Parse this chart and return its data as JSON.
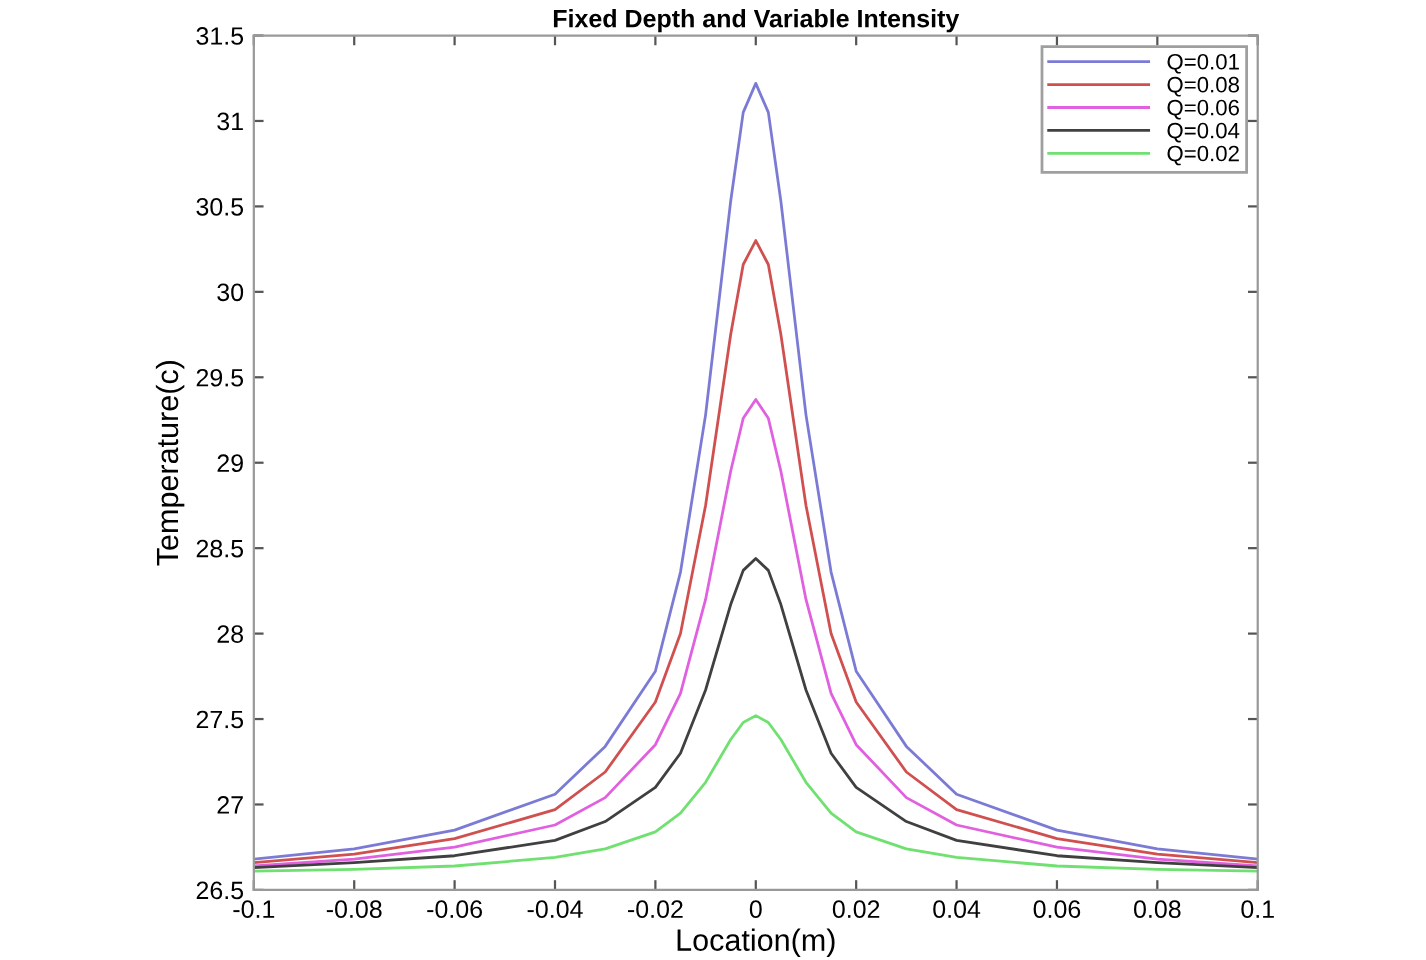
{
  "chart_data": {
    "type": "line",
    "title": "Fixed Depth and Variable Intensity",
    "xlabel": "Location(m)",
    "ylabel": "Temperature(c)",
    "x": [
      -0.1,
      -0.08,
      -0.06,
      -0.04,
      -0.03,
      -0.02,
      -0.015,
      -0.01,
      -0.005,
      -0.0025,
      0,
      0.0025,
      0.005,
      0.01,
      0.015,
      0.02,
      0.03,
      0.04,
      0.06,
      0.08,
      0.1
    ],
    "series": [
      {
        "name": "Q=0.01",
        "color": "#7b7bd6",
        "values": [
          26.68,
          26.74,
          26.85,
          27.06,
          27.34,
          27.78,
          28.36,
          29.28,
          30.53,
          31.05,
          31.22,
          31.05,
          30.53,
          29.28,
          28.36,
          27.78,
          27.34,
          27.06,
          26.85,
          26.74,
          26.68
        ]
      },
      {
        "name": "Q=0.08",
        "color": "#d05050",
        "values": [
          26.66,
          26.71,
          26.8,
          26.97,
          27.19,
          27.6,
          28.0,
          28.75,
          29.75,
          30.16,
          30.3,
          30.16,
          29.75,
          28.75,
          28.0,
          27.6,
          27.19,
          26.97,
          26.8,
          26.71,
          26.66
        ]
      },
      {
        "name": "Q=0.06",
        "color": "#e060e0",
        "values": [
          26.64,
          26.68,
          26.75,
          26.88,
          27.04,
          27.35,
          27.65,
          28.2,
          28.95,
          29.26,
          29.37,
          29.26,
          28.95,
          28.2,
          27.65,
          27.35,
          27.04,
          26.88,
          26.75,
          26.68,
          26.64
        ]
      },
      {
        "name": "Q=0.04",
        "color": "#404040",
        "values": [
          26.63,
          26.66,
          26.7,
          26.79,
          26.9,
          27.1,
          27.3,
          27.67,
          28.17,
          28.37,
          28.44,
          28.37,
          28.17,
          27.67,
          27.3,
          27.1,
          26.9,
          26.79,
          26.7,
          26.66,
          26.63
        ]
      },
      {
        "name": "Q=0.02",
        "color": "#70e070",
        "values": [
          26.61,
          26.62,
          26.64,
          26.69,
          26.74,
          26.84,
          26.95,
          27.13,
          27.38,
          27.48,
          27.52,
          27.48,
          27.38,
          27.13,
          26.95,
          26.84,
          26.74,
          26.69,
          26.64,
          26.62,
          26.61
        ]
      }
    ],
    "xlim": [
      -0.1,
      0.1
    ],
    "ylim": [
      26.5,
      31.5
    ],
    "xticks": [
      -0.1,
      -0.08,
      -0.06,
      -0.04,
      -0.02,
      0,
      0.02,
      0.04,
      0.06,
      0.08,
      0.1
    ],
    "yticks": [
      26.5,
      27,
      27.5,
      28,
      28.5,
      29,
      29.5,
      30,
      30.5,
      31,
      31.5
    ],
    "grid": false,
    "legend": "top right",
    "marker": "none",
    "line_style": "solid"
  }
}
